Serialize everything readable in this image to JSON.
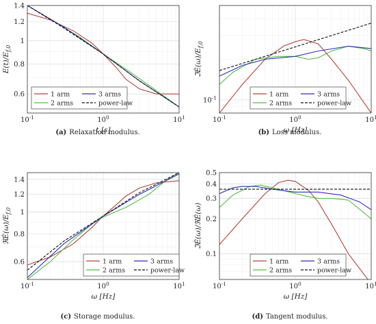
{
  "chart_data": [
    {
      "id": "a",
      "type": "line",
      "caption_tag": "(a)",
      "caption_text": "Relaxation modulus.",
      "xlabel": "t [s]",
      "ylabel": "E(t)/E_f,0",
      "xscale": "log",
      "yscale": "log",
      "xlim": [
        0.1,
        10
      ],
      "ylim": [
        0.5,
        1.4
      ],
      "xticks": [
        0.1,
        1,
        10
      ],
      "xtick_labels": [
        "10^-1",
        "10^0",
        "10^1"
      ],
      "yticks": [
        0.6,
        0.8,
        1,
        1.2,
        1.4
      ],
      "ytick_labels": [
        "0.6",
        "0.8",
        "1",
        "1.2",
        "1.4"
      ],
      "legend": {
        "placement": "bottom-left"
      },
      "series": [
        {
          "name": "1 arm",
          "color": "#b5433a",
          "dash": "",
          "x": [
            0.1,
            0.2,
            0.4,
            0.7,
            1,
            1.5,
            2,
            3,
            5,
            10
          ],
          "y": [
            1.3,
            1.22,
            1.1,
            0.98,
            0.88,
            0.77,
            0.69,
            0.63,
            0.6,
            0.6
          ]
        },
        {
          "name": "2 arms",
          "color": "#4fbf3f",
          "dash": "",
          "x": [
            0.1,
            0.2,
            0.5,
            1,
            2,
            5,
            10
          ],
          "y": [
            1.4,
            1.23,
            1.03,
            0.88,
            0.76,
            0.62,
            0.53
          ]
        },
        {
          "name": "3 arms",
          "color": "#2b2fbf",
          "dash": "",
          "x": [
            0.1,
            0.3,
            1,
            3,
            10
          ],
          "y": [
            1.4,
            1.14,
            0.88,
            0.68,
            0.53
          ]
        },
        {
          "name": "power-law",
          "color": "#111111",
          "dash": "4 2",
          "x": [
            0.1,
            0.3,
            1,
            3,
            10
          ],
          "y": [
            1.4,
            1.13,
            0.88,
            0.68,
            0.53
          ]
        }
      ]
    },
    {
      "id": "b",
      "type": "line",
      "caption_tag": "(b)",
      "caption_text": "Loss modulus.",
      "xlabel": "ω [Hz]",
      "ylabel": "ℑÊ(ω)/E_f,0",
      "xscale": "log",
      "yscale": "log",
      "xlim": [
        0.1,
        10
      ],
      "ylim": [
        0.08,
        0.5
      ],
      "xticks": [
        0.1,
        1,
        10
      ],
      "xtick_labels": [
        "10^-1",
        "10^0",
        "10^1"
      ],
      "yticks": [
        0.1
      ],
      "ytick_labels": [
        "10^-1"
      ],
      "legend": {
        "placement": "bottom"
      },
      "series": [
        {
          "name": "1 arm",
          "color": "#b5433a",
          "dash": "",
          "x": [
            0.1,
            0.2,
            0.4,
            0.7,
            1,
            1.3,
            2,
            3,
            5,
            10
          ],
          "y": [
            0.08,
            0.13,
            0.2,
            0.25,
            0.27,
            0.28,
            0.26,
            0.2,
            0.14,
            0.08
          ]
        },
        {
          "name": "2 arms",
          "color": "#4fbf3f",
          "dash": "",
          "x": [
            0.1,
            0.15,
            0.3,
            0.6,
            1,
            1.5,
            2,
            3,
            5,
            8,
            10
          ],
          "y": [
            0.13,
            0.16,
            0.2,
            0.21,
            0.21,
            0.2,
            0.205,
            0.23,
            0.25,
            0.24,
            0.23
          ]
        },
        {
          "name": "3 arms",
          "color": "#2b2fbf",
          "dash": "",
          "x": [
            0.1,
            0.2,
            0.4,
            1,
            2,
            5,
            10
          ],
          "y": [
            0.15,
            0.18,
            0.2,
            0.21,
            0.23,
            0.25,
            0.24
          ]
        },
        {
          "name": "power-law",
          "color": "#111111",
          "dash": "4 2",
          "x": [
            0.1,
            10
          ],
          "y": [
            0.165,
            0.37
          ]
        }
      ]
    },
    {
      "id": "c",
      "type": "line",
      "caption_tag": "(c)",
      "caption_text": "Storage modulus.",
      "xlabel": "ω [Hz]",
      "ylabel": "ℜÊ(ω)/E_f,0",
      "xscale": "log",
      "yscale": "log",
      "xlim": [
        0.1,
        10
      ],
      "ylim": [
        0.5,
        1.5
      ],
      "xticks": [
        0.1,
        1,
        10
      ],
      "xtick_labels": [
        "10^-1",
        "10^0",
        "10^1"
      ],
      "yticks": [
        0.6,
        0.8,
        1,
        1.2,
        1.4
      ],
      "ytick_labels": [
        "0.6",
        "0.8",
        "1",
        "1.2",
        "1.4"
      ],
      "legend": {
        "placement": "bottom-right"
      },
      "series": [
        {
          "name": "1 arm",
          "color": "#b5433a",
          "dash": "",
          "x": [
            0.1,
            0.2,
            0.4,
            0.7,
            1,
            1.5,
            2,
            3,
            5,
            10
          ],
          "y": [
            0.58,
            0.63,
            0.72,
            0.85,
            0.96,
            1.08,
            1.18,
            1.28,
            1.35,
            1.38
          ]
        },
        {
          "name": "2 arms",
          "color": "#4fbf3f",
          "dash": "",
          "x": [
            0.1,
            0.2,
            0.4,
            0.7,
            1,
            2,
            4,
            7,
            10
          ],
          "y": [
            0.5,
            0.6,
            0.75,
            0.88,
            0.95,
            1.05,
            1.2,
            1.4,
            1.5
          ]
        },
        {
          "name": "3 arms",
          "color": "#2b2fbf",
          "dash": "",
          "x": [
            0.1,
            0.3,
            1,
            3,
            10
          ],
          "y": [
            0.51,
            0.72,
            0.96,
            1.2,
            1.48
          ]
        },
        {
          "name": "power-law",
          "color": "#111111",
          "dash": "4 2",
          "x": [
            0.1,
            0.3,
            1,
            3,
            10
          ],
          "y": [
            0.55,
            0.74,
            0.96,
            1.22,
            1.5
          ]
        }
      ]
    },
    {
      "id": "d",
      "type": "line",
      "caption_tag": "(d)",
      "caption_text": "Tangent modulus.",
      "xlabel": "ω [Hz]",
      "ylabel": "ℑÊ(ω)/ℜÊ(ω)",
      "xscale": "log",
      "yscale": "log",
      "xlim": [
        0.1,
        10
      ],
      "ylim": [
        0.06,
        0.5
      ],
      "xticks": [
        0.1,
        1,
        10
      ],
      "xtick_labels": [
        "10^-1",
        "10^0",
        "10^1"
      ],
      "yticks": [
        0.1,
        0.2,
        0.3,
        0.4,
        0.5
      ],
      "ytick_labels": [
        "0.1",
        "0.2",
        "0.3",
        "0.4",
        "0.5"
      ],
      "legend": {
        "placement": "bottom"
      },
      "series": [
        {
          "name": "1 arm",
          "color": "#b5433a",
          "dash": "",
          "x": [
            0.1,
            0.2,
            0.4,
            0.6,
            0.8,
            1,
            1.5,
            2,
            3,
            5,
            10
          ],
          "y": [
            0.12,
            0.2,
            0.33,
            0.41,
            0.43,
            0.42,
            0.35,
            0.28,
            0.18,
            0.1,
            0.055
          ]
        },
        {
          "name": "2 arms",
          "color": "#4fbf3f",
          "dash": "",
          "x": [
            0.1,
            0.15,
            0.25,
            0.35,
            0.5,
            1,
            1.5,
            2,
            3,
            5,
            10
          ],
          "y": [
            0.25,
            0.32,
            0.38,
            0.39,
            0.37,
            0.33,
            0.31,
            0.3,
            0.3,
            0.29,
            0.2
          ]
        },
        {
          "name": "3 arms",
          "color": "#2b2fbf",
          "dash": "",
          "x": [
            0.1,
            0.15,
            0.2,
            0.3,
            0.5,
            1,
            2,
            4,
            7,
            10
          ],
          "y": [
            0.33,
            0.37,
            0.38,
            0.38,
            0.36,
            0.34,
            0.34,
            0.32,
            0.28,
            0.24
          ]
        },
        {
          "name": "power-law",
          "color": "#111111",
          "dash": "4 2",
          "x": [
            0.1,
            10
          ],
          "y": [
            0.36,
            0.36
          ]
        }
      ]
    }
  ]
}
